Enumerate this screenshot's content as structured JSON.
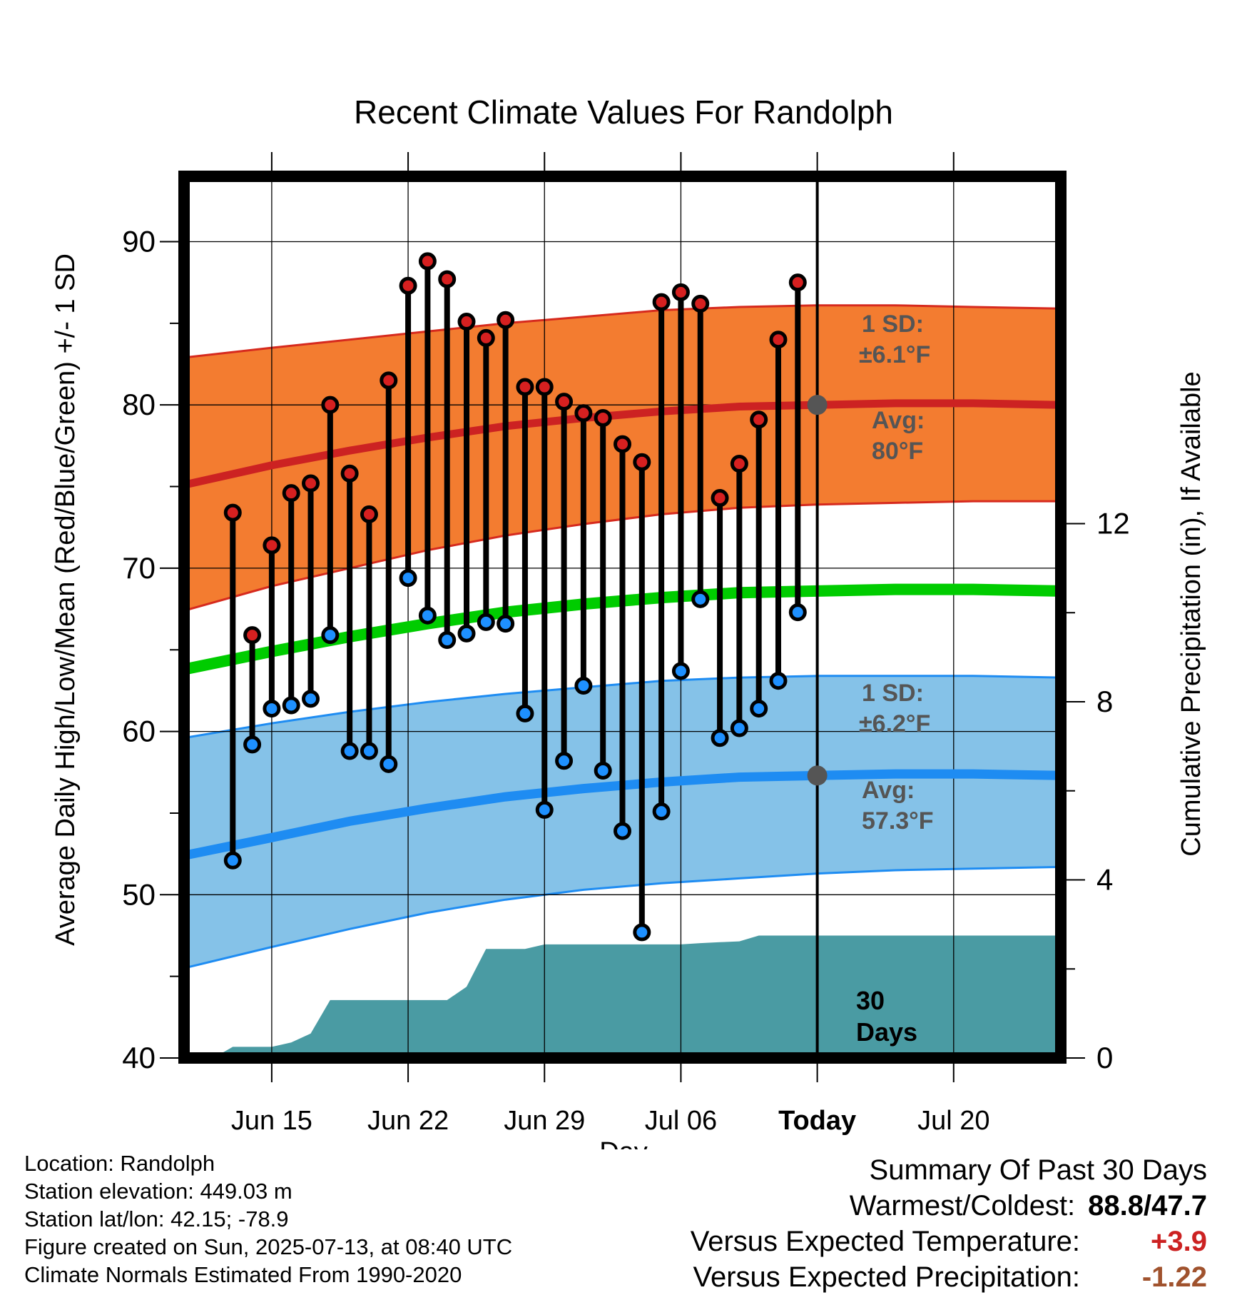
{
  "chart_data": {
    "type": "line",
    "title": "Recent Climate Values For Randolph",
    "xlabel": "Day",
    "ylabel": "Average Daily High/Low/Mean (Red/Blue/Green) +/- 1 SD",
    "y2label": "Cumulative Precipitation (in), If Available",
    "ylim": [
      40,
      94
    ],
    "y2lim": [
      0,
      19.8
    ],
    "yticks": [
      40,
      50,
      60,
      70,
      80,
      90
    ],
    "y2ticks": [
      0,
      4,
      8,
      12
    ],
    "x_range_days": [
      -32.5,
      12.5
    ],
    "x_tick_labels": [
      {
        "day": -28,
        "label": "Jun 15"
      },
      {
        "day": -21,
        "label": "Jun 22"
      },
      {
        "day": -14,
        "label": "Jun 29"
      },
      {
        "day": -7,
        "label": "Jul 06"
      },
      {
        "day": 0,
        "label": "Today"
      },
      {
        "day": 7,
        "label": "Jul 20"
      }
    ],
    "grid": true,
    "observations": {
      "days": [
        -30,
        -29,
        -28,
        -27,
        -26,
        -25,
        -24,
        -23,
        -22,
        -21,
        -20,
        -19,
        -18,
        -17,
        -16,
        -15,
        -14,
        -13,
        -12,
        -11,
        -10,
        -9,
        -8,
        -7,
        -6,
        -5,
        -4,
        -3,
        -2,
        -1
      ],
      "highs": [
        73.4,
        65.9,
        71.4,
        74.6,
        75.2,
        80.0,
        75.8,
        73.3,
        81.5,
        87.3,
        88.8,
        87.7,
        85.1,
        84.1,
        85.2,
        81.1,
        81.1,
        80.2,
        79.5,
        79.2,
        77.6,
        76.5,
        86.3,
        86.9,
        86.2,
        74.3,
        76.4,
        79.1,
        84.0,
        87.5
      ],
      "lows": [
        52.1,
        59.2,
        61.4,
        61.6,
        62.0,
        65.9,
        58.8,
        58.8,
        58.0,
        69.4,
        67.1,
        65.6,
        66.0,
        66.7,
        66.6,
        61.1,
        55.2,
        58.2,
        62.8,
        57.6,
        53.9,
        47.7,
        55.1,
        63.7,
        68.1,
        59.6,
        60.2,
        61.4,
        63.1,
        67.3
      ]
    },
    "normals": {
      "days": [
        -32.5,
        -28,
        -24,
        -20,
        -16,
        -12,
        -8,
        -4,
        0,
        4,
        8,
        12.5
      ],
      "avg_high": [
        75.1,
        76.3,
        77.2,
        78.0,
        78.7,
        79.2,
        79.6,
        79.9,
        80.0,
        80.1,
        80.1,
        80.0
      ],
      "avg_low": [
        52.4,
        53.5,
        54.5,
        55.3,
        56.0,
        56.5,
        56.9,
        57.2,
        57.3,
        57.4,
        57.4,
        57.3
      ],
      "avg_mean": [
        63.8,
        64.9,
        65.8,
        66.6,
        67.3,
        67.8,
        68.2,
        68.5,
        68.6,
        68.7,
        68.7,
        68.6
      ],
      "high_sd_upper": [
        82.9,
        83.5,
        84.0,
        84.5,
        85.0,
        85.4,
        85.8,
        86.0,
        86.1,
        86.1,
        86.0,
        85.9
      ],
      "high_sd_lower": [
        67.4,
        68.9,
        70.0,
        71.1,
        72.0,
        72.7,
        73.3,
        73.7,
        73.9,
        74.0,
        74.1,
        74.1
      ],
      "low_sd_upper": [
        59.6,
        60.5,
        61.2,
        61.8,
        62.3,
        62.7,
        63.1,
        63.3,
        63.4,
        63.4,
        63.4,
        63.3
      ],
      "low_sd_lower": [
        45.5,
        46.8,
        47.9,
        48.9,
        49.7,
        50.3,
        50.7,
        51.0,
        51.3,
        51.5,
        51.6,
        51.7
      ]
    },
    "precipitation": {
      "days": [
        -31,
        -30,
        -29,
        -28,
        -27,
        -26,
        -25,
        -24,
        -23,
        -22,
        -21,
        -20,
        -19,
        -18,
        -17,
        -16,
        -15,
        -14,
        -13,
        -12,
        -11,
        -10,
        -9,
        -8,
        -7,
        -6,
        -5,
        -4,
        -3,
        -2,
        -1,
        0,
        12.5
      ],
      "cumulative": [
        0,
        0.25,
        0.25,
        0.25,
        0.35,
        0.55,
        1.3,
        1.3,
        1.3,
        1.3,
        1.3,
        1.3,
        1.3,
        1.6,
        2.45,
        2.45,
        2.45,
        2.55,
        2.55,
        2.55,
        2.55,
        2.55,
        2.55,
        2.55,
        2.55,
        2.58,
        2.6,
        2.62,
        2.75,
        2.75,
        2.75,
        2.75,
        2.75
      ]
    },
    "annotations": {
      "high_sd": "1 SD:",
      "high_sd_value": "±6.1°F",
      "high_avg": "Avg:",
      "high_avg_value": "80°F",
      "low_sd": "1 SD:",
      "low_sd_value": "±6.2°F",
      "low_avg": "Avg:",
      "low_avg_value": "57.3°F",
      "period_line1": "30",
      "period_line2": "Days",
      "high_marker_value": 80.0,
      "low_marker_value": 57.3
    },
    "colors": {
      "high_band": "#f37c30",
      "high_edge": "#d62a1e",
      "high_avg": "#cc2222",
      "low_band": "#85c2e8",
      "low_edge": "#1e8cf2",
      "low_avg": "#1e8cf2",
      "mean": "#00cc00",
      "precip": "#4a9ba3",
      "high_dot": "#d62020",
      "low_dot": "#1e90ff",
      "annotation": "#555555"
    }
  },
  "footer": {
    "location": "Location: Randolph",
    "elevation": "Station elevation: 449.03 m",
    "latlon": "Station lat/lon: 42.15; -78.9",
    "created": "Figure created on Sun, 2025-07-13, at 08:40 UTC",
    "normals": "Climate Normals Estimated From 1990-2020"
  },
  "summary": {
    "title": "Summary Of Past 30 Days",
    "warmest_label": "Warmest/Coldest:",
    "warmest_value": "88.8/47.7",
    "temp_label": "Versus Expected Temperature:",
    "temp_value": "+3.9",
    "temp_color": "#cc2222",
    "precip_label": "Versus Expected Precipitation:",
    "precip_value": "-1.22",
    "precip_color": "#a0522d"
  }
}
